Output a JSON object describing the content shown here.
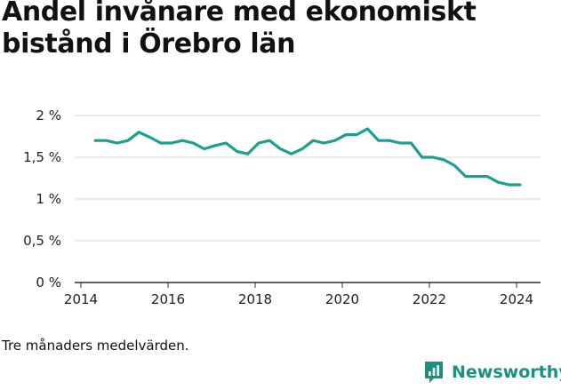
{
  "title": "Andel invånare med ekonomiskt bistånd i Örebro län",
  "note": "Tre månaders medelvärden.",
  "brand": {
    "name": "Newsworthy",
    "icon": "bar-chart-speech-bubble-icon",
    "color": "#1b8f80"
  },
  "chart_data": {
    "type": "line",
    "title": "Andel invånare med ekonomiskt bistånd i Örebro län",
    "xlabel": "",
    "ylabel": "",
    "ylim": [
      0,
      2
    ],
    "xlim": [
      2014,
      2024.6
    ],
    "yticks": [
      {
        "v": 0,
        "label": "0 %"
      },
      {
        "v": 0.5,
        "label": "0,5 %"
      },
      {
        "v": 1,
        "label": "1 %"
      },
      {
        "v": 1.5,
        "label": "1,5 %"
      },
      {
        "v": 2,
        "label": "2 %"
      }
    ],
    "xticks": [
      {
        "v": 2014,
        "label": "2014"
      },
      {
        "v": 2016,
        "label": "2016"
      },
      {
        "v": 2018,
        "label": "2018"
      },
      {
        "v": 2020,
        "label": "2020"
      },
      {
        "v": 2022,
        "label": "2022"
      },
      {
        "v": 2024,
        "label": "2024"
      }
    ],
    "grid": true,
    "legend": "none",
    "line_color": "#1ba090",
    "series": [
      {
        "x": [
          2014.33,
          2014.58,
          2014.83,
          2015.08,
          2015.33,
          2015.58,
          2015.83,
          2016.08,
          2016.33,
          2016.58,
          2016.83,
          2017.08,
          2017.33,
          2017.58,
          2017.83,
          2018.08,
          2018.33,
          2018.58,
          2018.83,
          2019.08,
          2019.33,
          2019.58,
          2019.83,
          2020.08,
          2020.33,
          2020.58,
          2020.83,
          2021.08,
          2021.33,
          2021.58,
          2021.83,
          2022.08,
          2022.33,
          2022.58,
          2022.83,
          2023.08,
          2023.33,
          2023.58,
          2023.83,
          2024.08
        ],
        "values": [
          1.7,
          1.7,
          1.67,
          1.7,
          1.8,
          1.74,
          1.67,
          1.67,
          1.7,
          1.67,
          1.6,
          1.64,
          1.67,
          1.57,
          1.54,
          1.67,
          1.7,
          1.6,
          1.54,
          1.6,
          1.7,
          1.67,
          1.7,
          1.77,
          1.77,
          1.84,
          1.7,
          1.7,
          1.67,
          1.67,
          1.5,
          1.5,
          1.47,
          1.4,
          1.27,
          1.27,
          1.27,
          1.2,
          1.17,
          1.17
        ]
      }
    ]
  }
}
